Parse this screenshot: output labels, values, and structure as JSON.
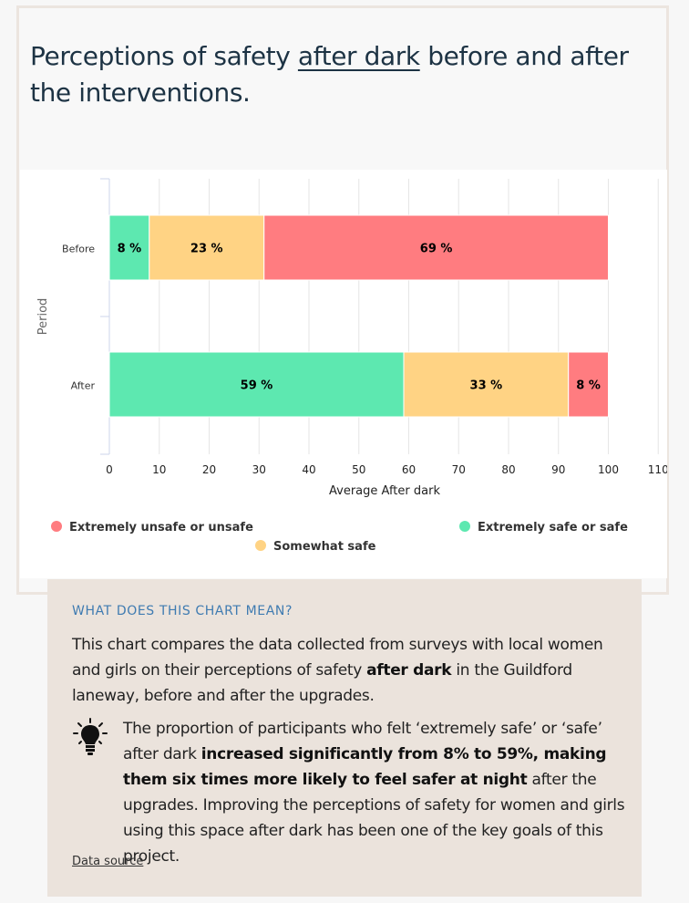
{
  "page": {
    "title_part1": "Perceptions of safety ",
    "title_underlined": "after dark",
    "title_part2": " before and after the interventions."
  },
  "colors": {
    "unsafe": "#ff7c80",
    "somewhat": "#ffd384",
    "safe": "#5de8b0",
    "heading": "#1d3344",
    "accent": "#3f7bb1",
    "info_bg": "#ebe3dc"
  },
  "chart_data": {
    "type": "bar",
    "orientation": "horizontal",
    "stacked": true,
    "categories": [
      "Before",
      "After"
    ],
    "series": [
      {
        "name": "Extremely safe or safe",
        "values": [
          8,
          59
        ],
        "labels": [
          "8 %",
          "59 %"
        ],
        "color": "#5de8b0"
      },
      {
        "name": "Somewhat safe",
        "values": [
          23,
          33
        ],
        "labels": [
          "23 %",
          "33 %"
        ],
        "color": "#ffd384"
      },
      {
        "name": "Extremely unsafe or unsafe",
        "values": [
          69,
          8
        ],
        "labels": [
          "69 %",
          "8 %"
        ],
        "color": "#ff7c80"
      }
    ],
    "xlabel": "Average After dark",
    "ylabel": "Period",
    "xlim": [
      0,
      110
    ],
    "xticks": [
      0,
      10,
      20,
      30,
      40,
      50,
      60,
      70,
      80,
      90,
      100,
      110
    ],
    "grid": true,
    "legend_placement": "bottom",
    "legend": [
      {
        "label": "Extremely unsafe or unsafe",
        "color": "#ff7c80"
      },
      {
        "label": "Extremely safe or safe",
        "color": "#5de8b0"
      },
      {
        "label": "Somewhat safe",
        "color": "#ffd384"
      }
    ]
  },
  "info": {
    "title": "WHAT DOES THIS CHART MEAN?",
    "para1_a": "This chart compares the data collected from surveys with local women and girls on their perceptions of safety ",
    "para1_bold": "after dark",
    "para1_b": " in the Guildford laneway, before and after the upgrades.",
    "tip_a": "The proportion of participants who felt ‘extremely safe’ or ‘safe’ after dark ",
    "tip_bold": "increased significantly from 8% to 59%, making them six times more likely to feel safer at night",
    "tip_b": " after the upgrades. Improving the perceptions of safety for women and girls using this space after dark has been one of the key goals of this project.",
    "tip_icon": "lightbulb-icon",
    "source_link": "Data source"
  }
}
